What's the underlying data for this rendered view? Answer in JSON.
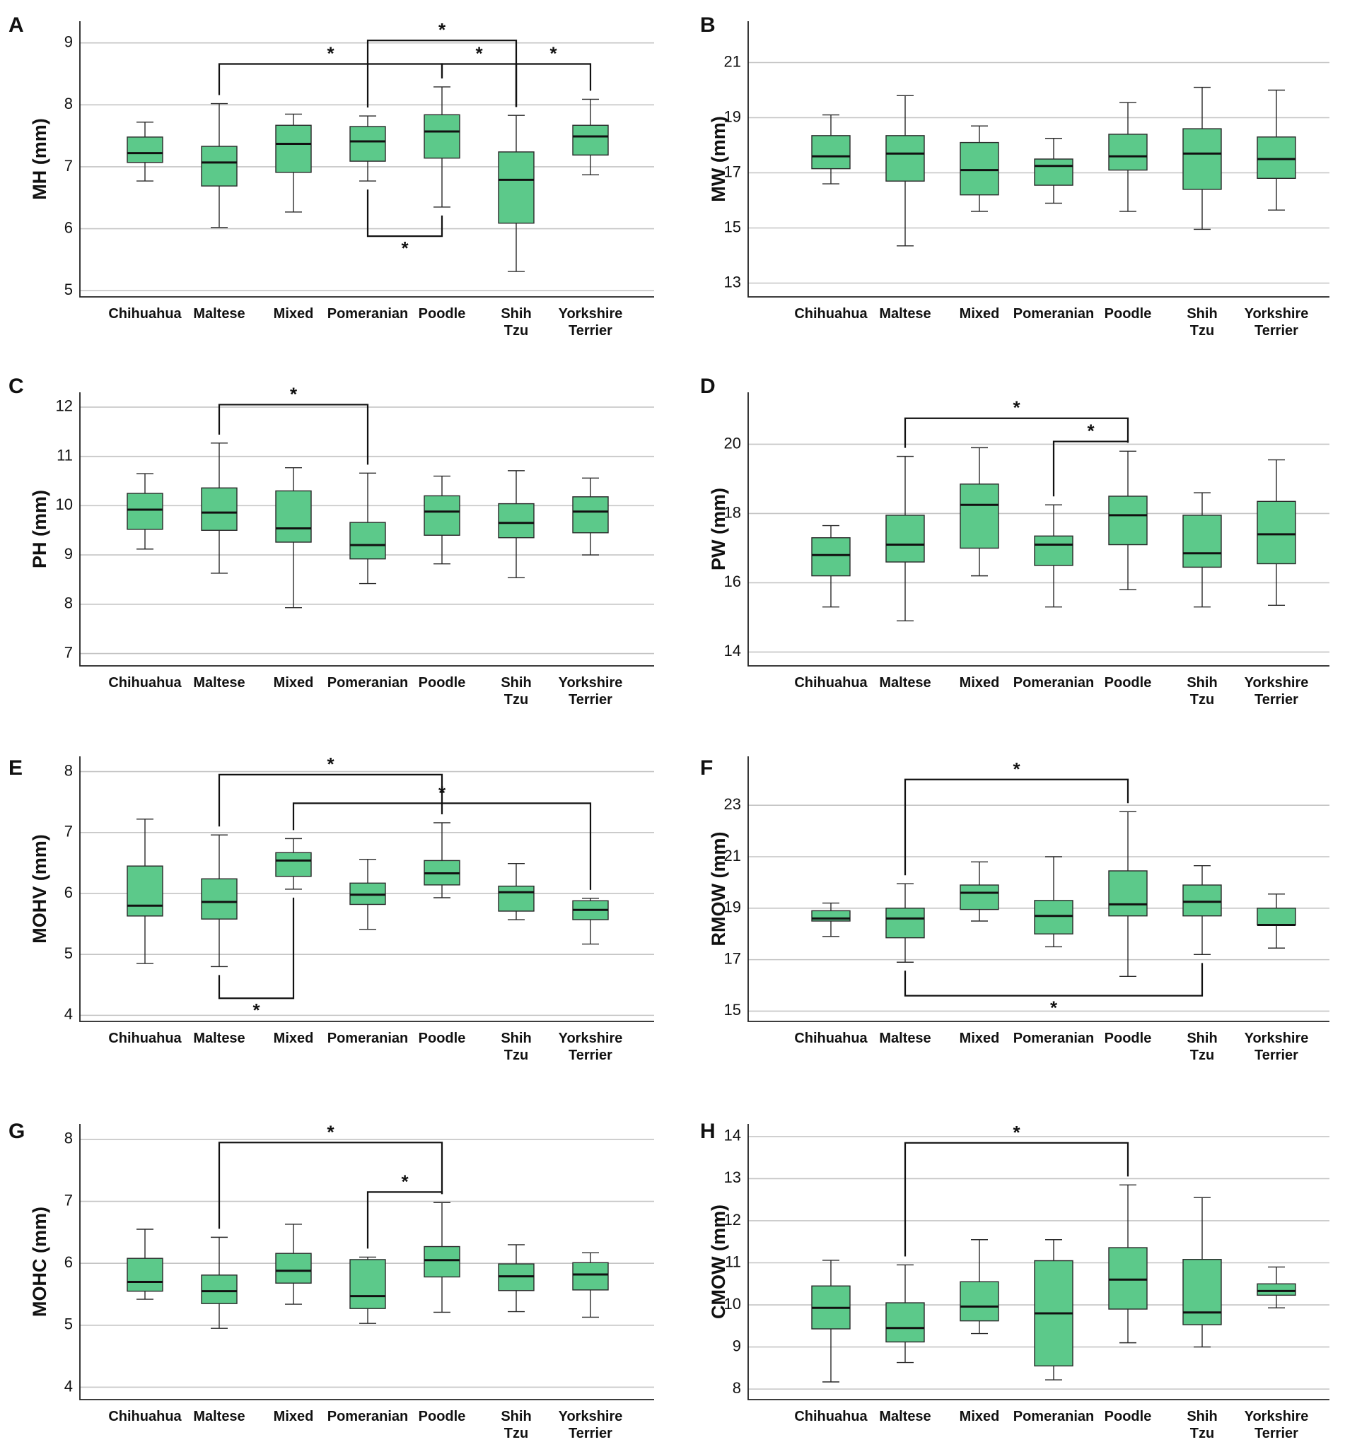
{
  "categories": [
    "Chihuahua",
    "Maltese",
    "Mixed",
    "Pomeranian",
    "Poodle",
    "Shih Tzu",
    "Yorkshire Terrier"
  ],
  "colors": {
    "box_fill": "#5cc98a",
    "grid": "#c4c4c4",
    "line": "#222222"
  },
  "chart_data": [
    {
      "letter": "A",
      "type": "box",
      "ylabel": "MH (mm)",
      "ylim": [
        4.9,
        9.35
      ],
      "yticks": [
        5,
        6,
        7,
        8,
        9
      ],
      "boxes": [
        {
          "min": 6.77,
          "q1": 7.07,
          "median": 7.22,
          "q3": 7.48,
          "max": 7.72
        },
        {
          "min": 6.02,
          "q1": 6.69,
          "median": 7.07,
          "q3": 7.33,
          "max": 8.02
        },
        {
          "min": 6.27,
          "q1": 6.91,
          "median": 7.37,
          "q3": 7.67,
          "max": 7.85
        },
        {
          "min": 6.77,
          "q1": 7.09,
          "median": 7.41,
          "q3": 7.65,
          "max": 7.82
        },
        {
          "min": 6.35,
          "q1": 7.14,
          "median": 7.57,
          "q3": 7.84,
          "max": 8.29
        },
        {
          "min": 5.31,
          "q1": 6.09,
          "median": 6.79,
          "q3": 7.24,
          "max": 7.83
        },
        {
          "min": 6.87,
          "q1": 7.19,
          "median": 7.49,
          "q3": 7.67,
          "max": 8.09
        }
      ],
      "significance": [
        {
          "from": 1,
          "to": 4,
          "level": 8.66,
          "side": "above",
          "label": "*"
        },
        {
          "from": 3,
          "to": 5,
          "level": 9.04,
          "side": "above",
          "label": "*"
        },
        {
          "from": 4,
          "to": 5,
          "level": 8.66,
          "side": "above",
          "label": "*"
        },
        {
          "from": 5,
          "to": 6,
          "level": 8.66,
          "side": "above",
          "label": "*"
        },
        {
          "from": 3,
          "to": 4,
          "level": 5.88,
          "side": "below",
          "label": "*"
        }
      ]
    },
    {
      "letter": "B",
      "type": "box",
      "ylabel": "MW (mm)",
      "ylim": [
        12.5,
        22.5
      ],
      "yticks": [
        13,
        15,
        17,
        19,
        21
      ],
      "boxes": [
        {
          "min": 16.6,
          "q1": 17.15,
          "median": 17.6,
          "q3": 18.35,
          "max": 19.1
        },
        {
          "min": 14.35,
          "q1": 16.7,
          "median": 17.7,
          "q3": 18.35,
          "max": 19.8
        },
        {
          "min": 15.6,
          "q1": 16.2,
          "median": 17.1,
          "q3": 18.1,
          "max": 18.7
        },
        {
          "min": 15.9,
          "q1": 16.55,
          "median": 17.25,
          "q3": 17.5,
          "max": 18.25
        },
        {
          "min": 15.6,
          "q1": 17.1,
          "median": 17.6,
          "q3": 18.4,
          "max": 19.55
        },
        {
          "min": 14.95,
          "q1": 16.4,
          "median": 17.7,
          "q3": 18.6,
          "max": 20.1
        },
        {
          "min": 15.65,
          "q1": 16.8,
          "median": 17.5,
          "q3": 18.3,
          "max": 20.0
        }
      ],
      "significance": []
    },
    {
      "letter": "C",
      "type": "box",
      "ylabel": "PH (mm)",
      "ylim": [
        6.75,
        12.3
      ],
      "yticks": [
        7,
        8,
        9,
        10,
        11,
        12
      ],
      "boxes": [
        {
          "min": 9.12,
          "q1": 9.52,
          "median": 9.92,
          "q3": 10.25,
          "max": 10.65
        },
        {
          "min": 8.63,
          "q1": 9.5,
          "median": 9.86,
          "q3": 10.36,
          "max": 11.27
        },
        {
          "min": 7.93,
          "q1": 9.26,
          "median": 9.54,
          "q3": 10.3,
          "max": 10.77
        },
        {
          "min": 8.42,
          "q1": 8.92,
          "median": 9.2,
          "q3": 9.66,
          "max": 10.66
        },
        {
          "min": 8.82,
          "q1": 9.4,
          "median": 9.88,
          "q3": 10.2,
          "max": 10.6
        },
        {
          "min": 8.54,
          "q1": 9.35,
          "median": 9.65,
          "q3": 10.04,
          "max": 10.71
        },
        {
          "min": 9.0,
          "q1": 9.45,
          "median": 9.88,
          "q3": 10.18,
          "max": 10.56
        }
      ],
      "significance": [
        {
          "from": 1,
          "to": 3,
          "level": 12.05,
          "side": "above",
          "label": "*"
        }
      ]
    },
    {
      "letter": "D",
      "type": "box",
      "ylabel": "PW (mm)",
      "ylim": [
        13.6,
        21.5
      ],
      "yticks": [
        14,
        16,
        18,
        20
      ],
      "boxes": [
        {
          "min": 15.3,
          "q1": 16.2,
          "median": 16.8,
          "q3": 17.3,
          "max": 17.65
        },
        {
          "min": 14.9,
          "q1": 16.6,
          "median": 17.1,
          "q3": 17.95,
          "max": 19.65
        },
        {
          "min": 16.2,
          "q1": 17.0,
          "median": 18.25,
          "q3": 18.85,
          "max": 19.9
        },
        {
          "min": 15.3,
          "q1": 16.5,
          "median": 17.1,
          "q3": 17.35,
          "max": 18.25
        },
        {
          "min": 15.8,
          "q1": 17.1,
          "median": 17.95,
          "q3": 18.5,
          "max": 19.8
        },
        {
          "min": 15.3,
          "q1": 16.45,
          "median": 16.85,
          "q3": 17.95,
          "max": 18.6
        },
        {
          "min": 15.35,
          "q1": 16.55,
          "median": 17.4,
          "q3": 18.35,
          "max": 19.55
        }
      ],
      "significance": [
        {
          "from": 1,
          "to": 4,
          "level": 20.75,
          "side": "above",
          "label": "*"
        },
        {
          "from": 3,
          "to": 4,
          "level": 20.08,
          "side": "above",
          "label": "*"
        }
      ]
    },
    {
      "letter": "E",
      "type": "box",
      "ylabel": "MOHV (mm)",
      "ylim": [
        3.9,
        8.25
      ],
      "yticks": [
        4,
        5,
        6,
        7,
        8
      ],
      "boxes": [
        {
          "min": 4.85,
          "q1": 5.63,
          "median": 5.8,
          "q3": 6.45,
          "max": 7.22
        },
        {
          "min": 4.8,
          "q1": 5.58,
          "median": 5.86,
          "q3": 6.24,
          "max": 6.96
        },
        {
          "min": 6.07,
          "q1": 6.28,
          "median": 6.54,
          "q3": 6.67,
          "max": 6.9
        },
        {
          "min": 5.41,
          "q1": 5.82,
          "median": 5.98,
          "q3": 6.17,
          "max": 6.56
        },
        {
          "min": 5.93,
          "q1": 6.14,
          "median": 6.33,
          "q3": 6.54,
          "max": 7.16
        },
        {
          "min": 5.57,
          "q1": 5.71,
          "median": 6.02,
          "q3": 6.12,
          "max": 6.49
        },
        {
          "min": 5.17,
          "q1": 5.57,
          "median": 5.73,
          "q3": 5.88,
          "max": 5.92
        }
      ],
      "significance": [
        {
          "from": 1,
          "to": 4,
          "level": 7.95,
          "side": "above",
          "label": "*"
        },
        {
          "from": 2,
          "to": 6,
          "level": 7.48,
          "side": "above",
          "label": "*"
        },
        {
          "from": 1,
          "to": 2,
          "level": 4.28,
          "side": "below",
          "label": "*"
        }
      ]
    },
    {
      "letter": "F",
      "type": "box",
      "ylabel": "RMOW (mm)",
      "ylim": [
        14.6,
        24.9
      ],
      "yticks": [
        15,
        17,
        19,
        21,
        23
      ],
      "boxes": [
        {
          "min": 17.9,
          "q1": 18.5,
          "median": 18.6,
          "q3": 18.9,
          "max": 19.2
        },
        {
          "min": 16.9,
          "q1": 17.85,
          "median": 18.6,
          "q3": 19.0,
          "max": 19.95
        },
        {
          "min": 18.5,
          "q1": 18.95,
          "median": 19.6,
          "q3": 19.9,
          "max": 20.8
        },
        {
          "min": 17.5,
          "q1": 18.0,
          "median": 18.7,
          "q3": 19.3,
          "max": 21.0
        },
        {
          "min": 16.35,
          "q1": 18.7,
          "median": 19.15,
          "q3": 20.45,
          "max": 22.75
        },
        {
          "min": 17.2,
          "q1": 18.7,
          "median": 19.25,
          "q3": 19.9,
          "max": 20.65
        },
        {
          "min": 17.45,
          "q1": 18.35,
          "median": 18.35,
          "q3": 19.0,
          "max": 19.55
        }
      ],
      "significance": [
        {
          "from": 1,
          "to": 4,
          "level": 24.0,
          "side": "above",
          "label": "*"
        },
        {
          "from": 1,
          "to": 5,
          "level": 15.6,
          "side": "below",
          "label": "*"
        }
      ]
    },
    {
      "letter": "G",
      "type": "box",
      "ylabel": "MOHC (mm)",
      "ylim": [
        3.8,
        8.25
      ],
      "yticks": [
        4,
        5,
        6,
        7,
        8
      ],
      "boxes": [
        {
          "min": 5.42,
          "q1": 5.55,
          "median": 5.7,
          "q3": 6.08,
          "max": 6.55
        },
        {
          "min": 4.95,
          "q1": 5.35,
          "median": 5.55,
          "q3": 5.81,
          "max": 6.42
        },
        {
          "min": 5.34,
          "q1": 5.68,
          "median": 5.88,
          "q3": 6.16,
          "max": 6.63
        },
        {
          "min": 5.03,
          "q1": 5.27,
          "median": 5.47,
          "q3": 6.06,
          "max": 6.1
        },
        {
          "min": 5.21,
          "q1": 5.78,
          "median": 6.05,
          "q3": 6.27,
          "max": 6.98
        },
        {
          "min": 5.22,
          "q1": 5.56,
          "median": 5.79,
          "q3": 5.99,
          "max": 6.3
        },
        {
          "min": 5.13,
          "q1": 5.57,
          "median": 5.82,
          "q3": 6.01,
          "max": 6.17
        }
      ],
      "significance": [
        {
          "from": 1,
          "to": 4,
          "level": 7.95,
          "side": "above",
          "label": "*"
        },
        {
          "from": 3,
          "to": 4,
          "level": 7.15,
          "side": "above",
          "label": "*"
        }
      ]
    },
    {
      "letter": "H",
      "type": "box",
      "ylabel": "CMOW (mm)",
      "ylim": [
        7.75,
        14.3
      ],
      "yticks": [
        8,
        9,
        10,
        11,
        12,
        13,
        14
      ],
      "boxes": [
        {
          "min": 8.17,
          "q1": 9.43,
          "median": 9.93,
          "q3": 10.45,
          "max": 11.06
        },
        {
          "min": 8.63,
          "q1": 9.12,
          "median": 9.45,
          "q3": 10.05,
          "max": 10.95
        },
        {
          "min": 9.32,
          "q1": 9.62,
          "median": 9.96,
          "q3": 10.55,
          "max": 11.55
        },
        {
          "min": 8.22,
          "q1": 8.55,
          "median": 9.8,
          "q3": 11.05,
          "max": 11.55
        },
        {
          "min": 9.1,
          "q1": 9.9,
          "median": 10.6,
          "q3": 11.36,
          "max": 12.85
        },
        {
          "min": 9.0,
          "q1": 9.53,
          "median": 9.82,
          "q3": 11.08,
          "max": 12.55
        },
        {
          "min": 9.93,
          "q1": 10.23,
          "median": 10.33,
          "q3": 10.5,
          "max": 10.9
        }
      ],
      "significance": [
        {
          "from": 1,
          "to": 4,
          "level": 13.85,
          "side": "above",
          "label": "*"
        }
      ]
    }
  ]
}
